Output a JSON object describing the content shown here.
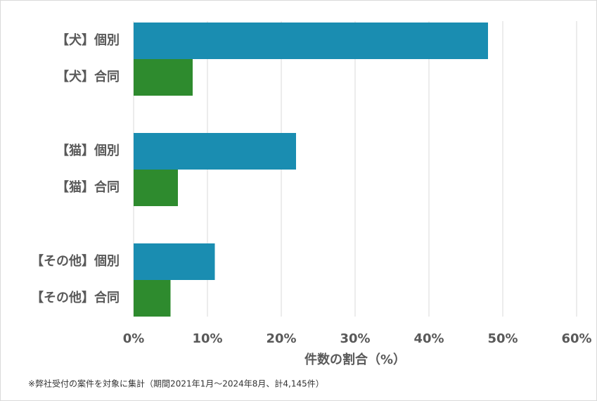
{
  "chart_data": {
    "type": "hbar",
    "categories": [
      "【犬】個別",
      "【犬】合同",
      "【猫】個別",
      "【猫】合同",
      "【その他】個別",
      "【その他】合同"
    ],
    "values": [
      48,
      8,
      22,
      6,
      11,
      5
    ],
    "colors": [
      "#1a8db1",
      "#2e8b2e",
      "#1a8db1",
      "#2e8b2e",
      "#1a8db1",
      "#2e8b2e"
    ],
    "xlim": [
      0,
      60
    ],
    "xticks": [
      {
        "value": 0,
        "label": "0%"
      },
      {
        "value": 10,
        "label": "10%"
      },
      {
        "value": 20,
        "label": "20%"
      },
      {
        "value": 30,
        "label": "30%"
      },
      {
        "value": 40,
        "label": "40%"
      },
      {
        "value": 50,
        "label": "50%"
      },
      {
        "value": 60,
        "label": "60%"
      }
    ],
    "grid": true,
    "xlabel": "件数の割合（%）",
    "note": "※弊社受付の案件を対象に集計（期間2021年1月～2024年8月、計4,145件）"
  }
}
